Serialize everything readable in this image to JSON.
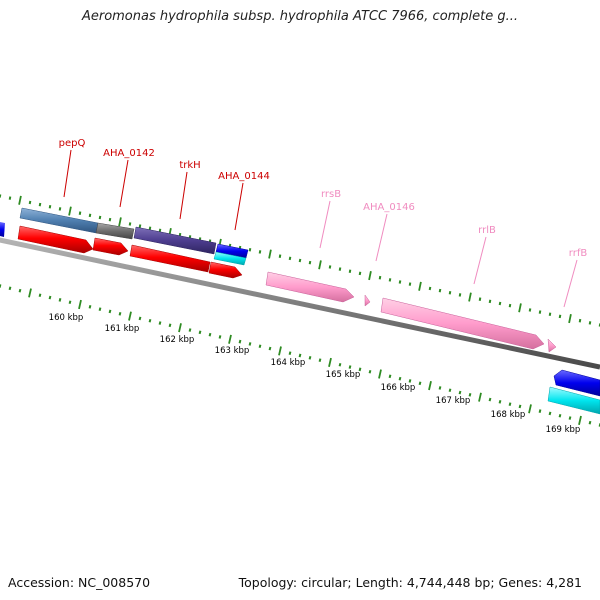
{
  "header": {
    "title": "Aeromonas hydrophila subsp. hydrophila ATCC 7966, complete g..."
  },
  "footer": {
    "accession": "Accession: NC_008570",
    "summary": "Topology: circular; Length: 4,744,448 bp; Genes: 4,281"
  },
  "colors": {
    "backbone": "#7f7f7f",
    "tick": "#2e8b22",
    "label_red": "#cc0000",
    "label_pink": "#f08cc0",
    "forward_cds": "#ff0000",
    "gene_track": "#4f7fb0",
    "rrna": "#ff9ccc",
    "blue": "#0000ee",
    "cyan": "#00e5ee",
    "purple": "#4d3d8f",
    "gray_feature": "#6e6e6e"
  },
  "scale": {
    "tick_labels": [
      "160 kbp",
      "161 kbp",
      "162 kbp",
      "163 kbp",
      "164 kbp",
      "165 kbp",
      "166 kbp",
      "167 kbp",
      "168 kbp",
      "169 kbp"
    ]
  },
  "features": [
    {
      "label": "pepQ",
      "color_role": "label_red"
    },
    {
      "label": "AHA_0142",
      "color_role": "label_red"
    },
    {
      "label": "trkH",
      "color_role": "label_red"
    },
    {
      "label": "AHA_0144",
      "color_role": "label_red"
    },
    {
      "label": "rrsB",
      "color_role": "label_pink"
    },
    {
      "label": "AHA_0146",
      "color_role": "label_pink"
    },
    {
      "label": "rrlB",
      "color_role": "label_pink"
    },
    {
      "label": "rrfB",
      "color_role": "label_pink"
    }
  ]
}
